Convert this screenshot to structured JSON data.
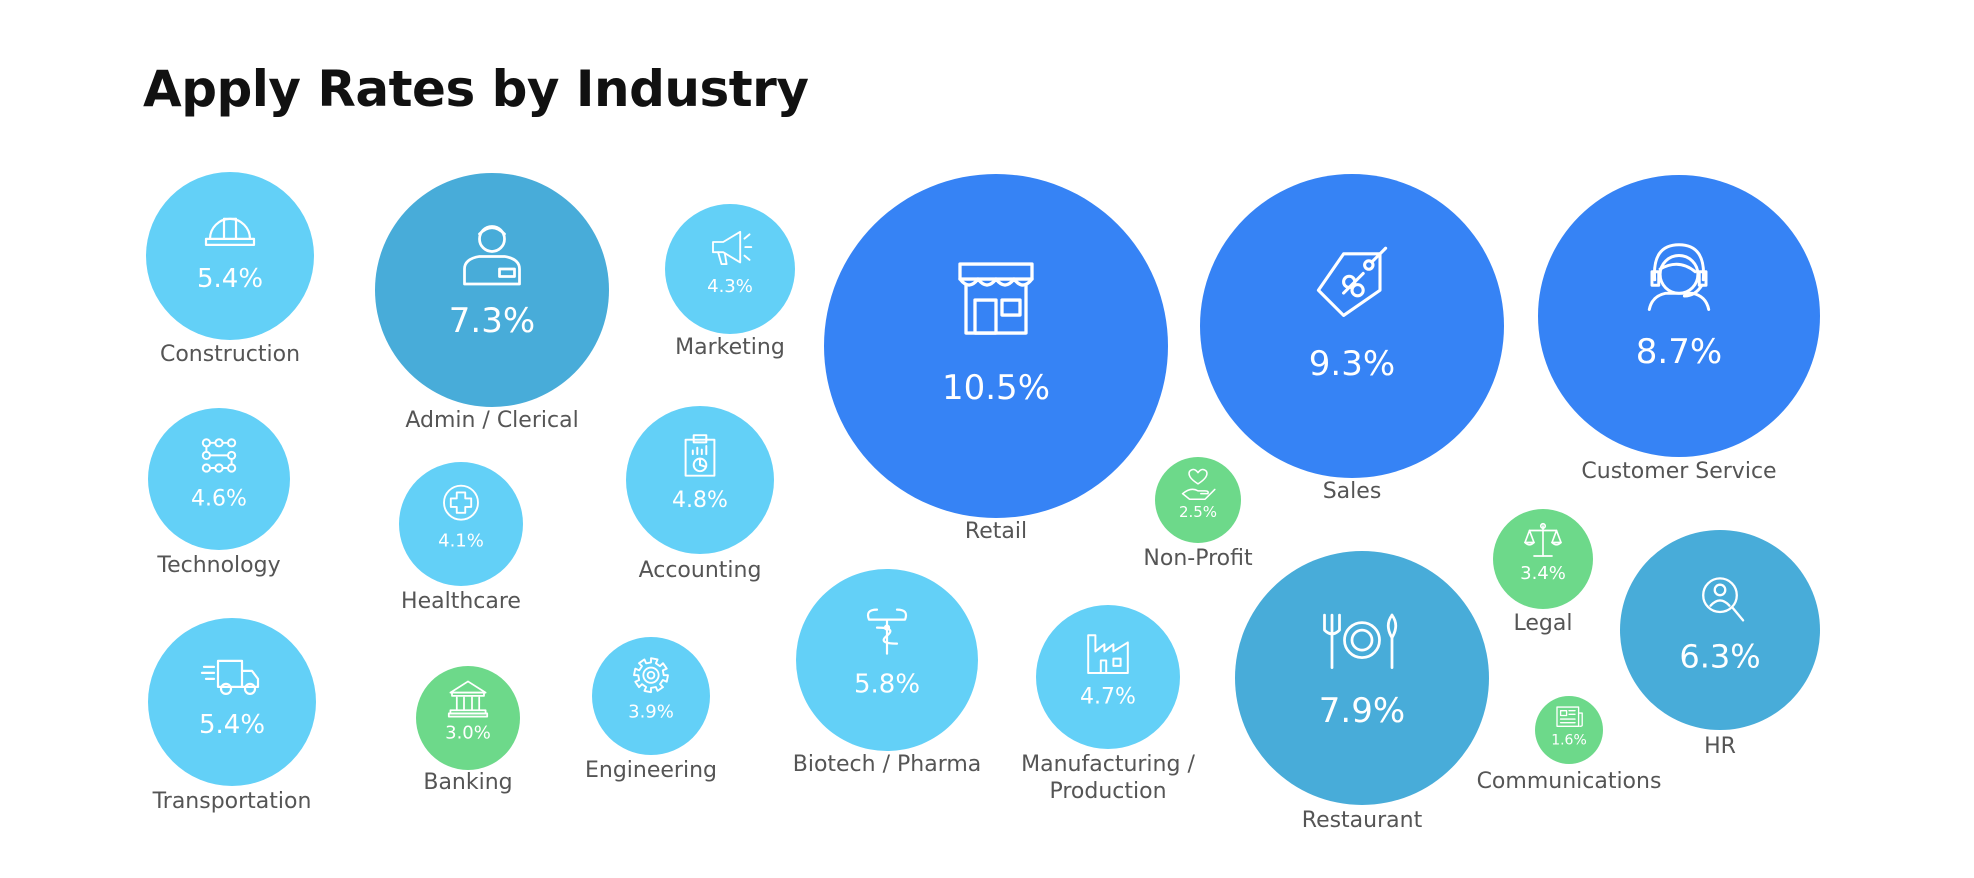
{
  "colors": {
    "light_blue": "#63d0f7",
    "medium_blue": "#48acd9",
    "bright_blue": "#3683f5",
    "green": "#6dd98a",
    "label_gray": "#555555",
    "title": "#111111"
  },
  "chart_data": {
    "type": "bubble",
    "title": "Apply Rates by Industry",
    "unit": "%",
    "items": [
      {
        "label": "Construction",
        "value": 5.4,
        "display": "5.4%",
        "color": "#63d0f7",
        "icon": "hard-hat-icon"
      },
      {
        "label": "Admin / Clerical",
        "value": 7.3,
        "display": "7.3%",
        "color": "#48acd9",
        "icon": "clerk-icon"
      },
      {
        "label": "Marketing",
        "value": 4.3,
        "display": "4.3%",
        "color": "#63d0f7",
        "icon": "megaphone-icon"
      },
      {
        "label": "Retail",
        "value": 10.5,
        "display": "10.5%",
        "color": "#3683f5",
        "icon": "storefront-icon"
      },
      {
        "label": "Sales",
        "value": 9.3,
        "display": "9.3%",
        "color": "#3683f5",
        "icon": "price-tag-icon"
      },
      {
        "label": "Customer Service",
        "value": 8.7,
        "display": "8.7%",
        "color": "#3683f5",
        "icon": "headset-agent-icon"
      },
      {
        "label": "Technology",
        "value": 4.6,
        "display": "4.6%",
        "color": "#63d0f7",
        "icon": "network-nodes-icon"
      },
      {
        "label": "Healthcare",
        "value": 4.1,
        "display": "4.1%",
        "color": "#63d0f7",
        "icon": "medical-cross-icon"
      },
      {
        "label": "Accounting",
        "value": 4.8,
        "display": "4.8%",
        "color": "#63d0f7",
        "icon": "clipboard-chart-icon"
      },
      {
        "label": "Non-Profit",
        "value": 2.5,
        "display": "2.5%",
        "color": "#6dd98a",
        "icon": "heart-hand-icon"
      },
      {
        "label": "Legal",
        "value": 3.4,
        "display": "3.4%",
        "color": "#6dd98a",
        "icon": "scales-icon"
      },
      {
        "label": "HR",
        "value": 6.3,
        "display": "6.3%",
        "color": "#48acd9",
        "icon": "person-search-icon"
      },
      {
        "label": "Transportation",
        "value": 5.4,
        "display": "5.4%",
        "color": "#63d0f7",
        "icon": "delivery-truck-icon"
      },
      {
        "label": "Banking",
        "value": 3.0,
        "display": "3.0%",
        "color": "#6dd98a",
        "icon": "bank-icon"
      },
      {
        "label": "Engineering",
        "value": 3.9,
        "display": "3.9%",
        "color": "#63d0f7",
        "icon": "gear-icon"
      },
      {
        "label": "Biotech / Pharma",
        "value": 5.8,
        "display": "5.8%",
        "color": "#63d0f7",
        "icon": "pharmacy-icon"
      },
      {
        "label": [
          "Manufacturing /",
          "Production"
        ],
        "value": 4.7,
        "display": "4.7%",
        "color": "#63d0f7",
        "icon": "factory-icon"
      },
      {
        "label": "Restaurant",
        "value": 7.9,
        "display": "7.9%",
        "color": "#48acd9",
        "icon": "dining-icon"
      },
      {
        "label": "Communications",
        "value": 1.6,
        "display": "1.6%",
        "color": "#6dd98a",
        "icon": "newspaper-icon"
      }
    ]
  }
}
